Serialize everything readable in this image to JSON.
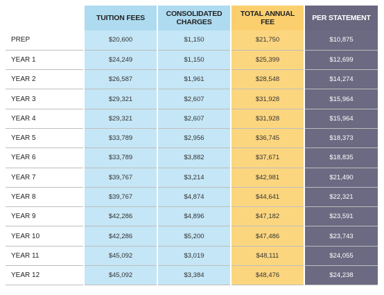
{
  "table": {
    "headers": [
      "",
      "TUITION FEES",
      "CONSOLIDATED CHARGES",
      "TOTAL ANNUAL FEE",
      "PER STATEMENT"
    ],
    "rows": [
      {
        "label": "PREP",
        "tuition": "$20,600",
        "consolidated": "$1,150",
        "total": "$21,750",
        "per_statement": "$10,875"
      },
      {
        "label": "YEAR 1",
        "tuition": "$24,249",
        "consolidated": "$1,150",
        "total": "$25,399",
        "per_statement": "$12,699"
      },
      {
        "label": "YEAR 2",
        "tuition": "$26,587",
        "consolidated": "$1,961",
        "total": "$28,548",
        "per_statement": "$14,274"
      },
      {
        "label": "YEAR 3",
        "tuition": "$29,321",
        "consolidated": "$2,607",
        "total": "$31,928",
        "per_statement": "$15,964"
      },
      {
        "label": "YEAR 4",
        "tuition": "$29,321",
        "consolidated": "$2,607",
        "total": "$31,928",
        "per_statement": "$15,964"
      },
      {
        "label": "YEAR 5",
        "tuition": "$33,789",
        "consolidated": "$2,956",
        "total": "$36,745",
        "per_statement": "$18,373"
      },
      {
        "label": "YEAR 6",
        "tuition": "$33,789",
        "consolidated": "$3,882",
        "total": "$37,671",
        "per_statement": "$18,835"
      },
      {
        "label": "YEAR 7",
        "tuition": "$39,767",
        "consolidated": "$3,214",
        "total": "$42,981",
        "per_statement": "$21,490"
      },
      {
        "label": "YEAR 8",
        "tuition": "$39,767",
        "consolidated": "$4,874",
        "total": "$44,641",
        "per_statement": "$22,321"
      },
      {
        "label": "YEAR 9",
        "tuition": "$42,286",
        "consolidated": "$4,896",
        "total": "$47,182",
        "per_statement": "$23,591"
      },
      {
        "label": "YEAR 10",
        "tuition": "$42,286",
        "consolidated": "$5,200",
        "total": "$47,486",
        "per_statement": "$23,743"
      },
      {
        "label": "YEAR 11",
        "tuition": "$45,092",
        "consolidated": "$3,019",
        "total": "$48,111",
        "per_statement": "$24,055"
      },
      {
        "label": "YEAR 12",
        "tuition": "$45,092",
        "consolidated": "$3,384",
        "total": "$48,476",
        "per_statement": "$24,238"
      }
    ]
  },
  "colors": {
    "tuition_header": "#aedbf0",
    "tuition_cell": "#c5e6f6",
    "total_header": "#fbcf6e",
    "total_cell": "#fcd67f",
    "per_statement": "#68677f"
  }
}
